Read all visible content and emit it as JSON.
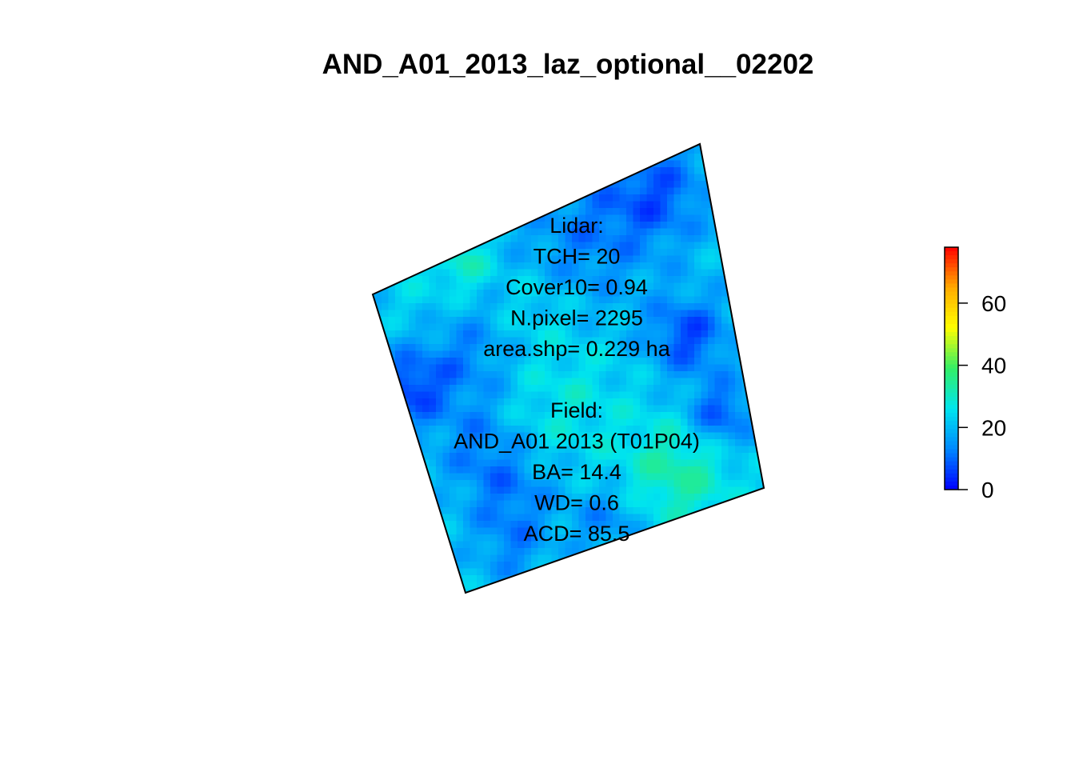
{
  "chart_data": {
    "type": "heatmap",
    "title": "AND_A01_2013_laz_optional__02202",
    "value_range": [
      0,
      78
    ],
    "colorbar": {
      "ticks": [
        0,
        20,
        40,
        60
      ],
      "tick_labels": [
        "0",
        "20",
        "40",
        "60"
      ],
      "colors": [
        "#0000ff",
        "#0088ff",
        "#00e5ee",
        "#33ee66",
        "#ffff00",
        "#ffaa00",
        "#ff0000"
      ]
    },
    "annotation_lines": [
      "Lidar:",
      "TCH= 20",
      "Cover10= 0.94",
      "N.pixel= 2295",
      "area.shp= 0.229 ha",
      "",
      "Field:",
      "AND_A01 2013 (T01P04)",
      "BA= 14.4",
      "WD= 0.6",
      "ACD= 85.5"
    ]
  }
}
